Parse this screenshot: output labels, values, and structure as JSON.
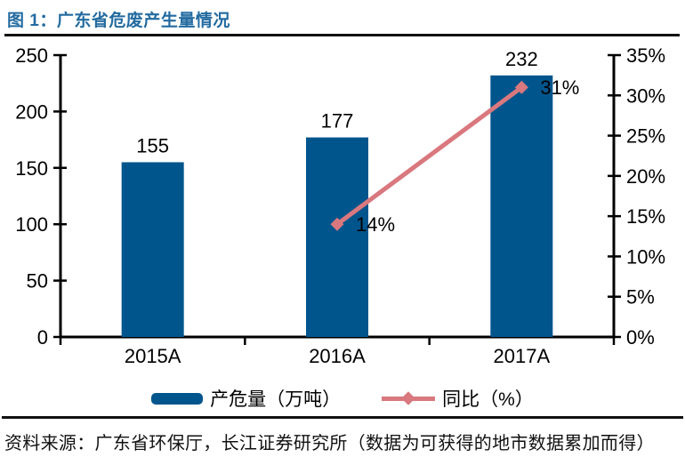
{
  "header": {
    "title": "图 1：广东省危废产生量情况"
  },
  "footer": {
    "source": "资料来源：广东省环保厅，长江证券研究所（数据为可获得的地市数据累加而得）"
  },
  "colors": {
    "title": "#236ba0",
    "bar": "#00558c",
    "line": "#d9787e",
    "axis": "#000000",
    "rule": "#111111",
    "text": "#000000"
  },
  "chart_data": {
    "type": "bar+line combo",
    "categories": [
      "2015A",
      "2016A",
      "2017A"
    ],
    "series": [
      {
        "name": "产危量（万吨）",
        "type": "bar",
        "axis": "left",
        "values": [
          155,
          177,
          232
        ],
        "data_labels": [
          "155",
          "177",
          "232"
        ]
      },
      {
        "name": "同比（%）",
        "type": "line",
        "axis": "right",
        "values": [
          null,
          14,
          31
        ],
        "data_labels": [
          null,
          "14%",
          "31%"
        ]
      }
    ],
    "left_axis": {
      "min": 0,
      "max": 250,
      "step": 50,
      "tick_labels": [
        "0",
        "50",
        "100",
        "150",
        "200",
        "250"
      ]
    },
    "right_axis": {
      "min": 0,
      "max": 35,
      "step": 5,
      "tick_labels": [
        "0%",
        "5%",
        "10%",
        "15%",
        "20%",
        "25%",
        "30%",
        "35%"
      ]
    },
    "legend": {
      "position": "bottom",
      "entries": [
        "产危量（万吨）",
        "同比（%）"
      ]
    },
    "grid": false
  }
}
